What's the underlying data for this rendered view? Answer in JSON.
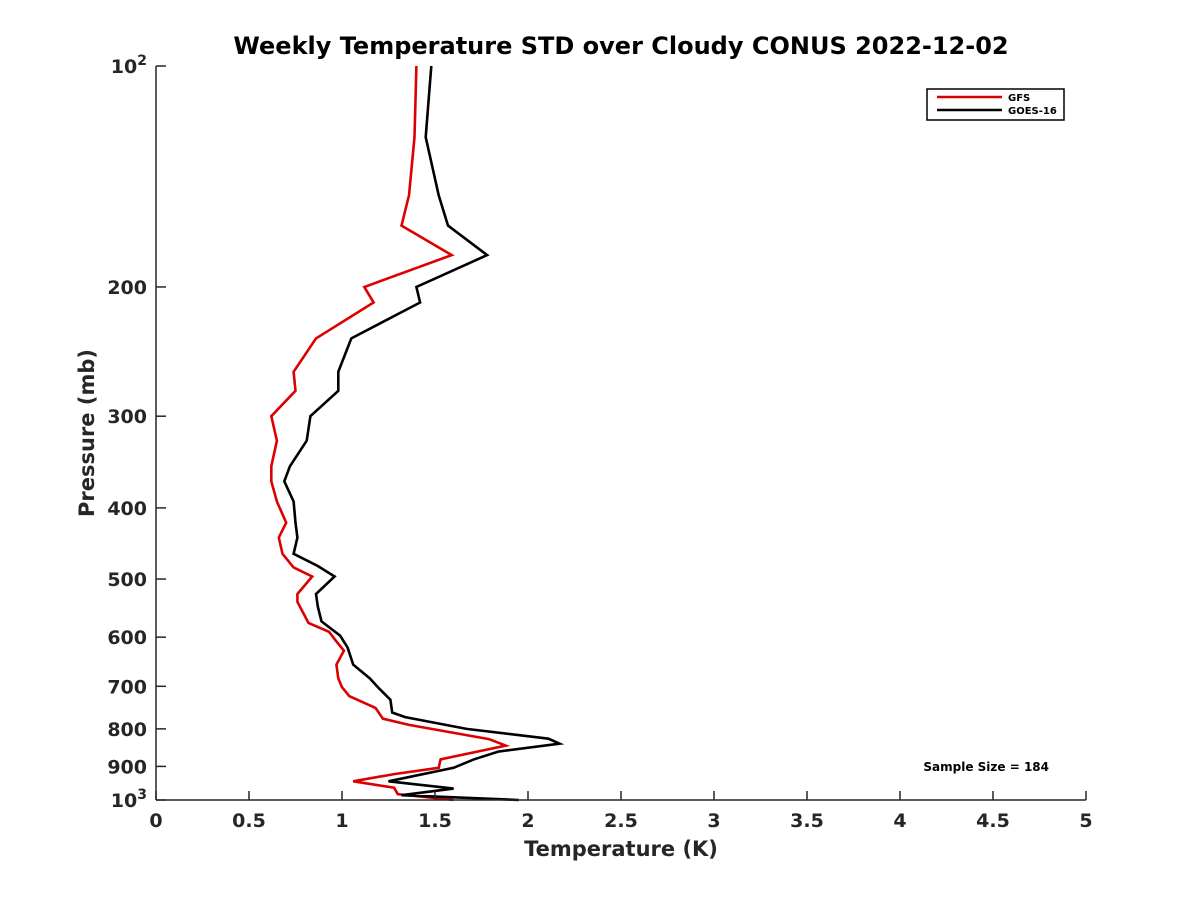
{
  "chart_data": {
    "type": "line",
    "title": "Weekly Temperature STD over Cloudy CONUS 2022-12-02",
    "xlabel": "Temperature (K)",
    "ylabel": "Pressure (mb)",
    "xlim": [
      0,
      5
    ],
    "ylim": [
      100,
      1000
    ],
    "y_scale": "log",
    "y_reversed": true,
    "x_ticks": [
      {
        "value": 0,
        "label": "0"
      },
      {
        "value": 0.5,
        "label": "0.5"
      },
      {
        "value": 1,
        "label": "1"
      },
      {
        "value": 1.5,
        "label": "1.5"
      },
      {
        "value": 2,
        "label": "2"
      },
      {
        "value": 2.5,
        "label": "2.5"
      },
      {
        "value": 3,
        "label": "3"
      },
      {
        "value": 3.5,
        "label": "3.5"
      },
      {
        "value": 4,
        "label": "4"
      },
      {
        "value": 4.5,
        "label": "4.5"
      },
      {
        "value": 5,
        "label": "5"
      }
    ],
    "y_ticks": [
      {
        "value": 100,
        "label": "10",
        "sup": "2"
      },
      {
        "value": 200,
        "label": "200"
      },
      {
        "value": 300,
        "label": "300"
      },
      {
        "value": 400,
        "label": "400"
      },
      {
        "value": 500,
        "label": "500"
      },
      {
        "value": 600,
        "label": "600"
      },
      {
        "value": 700,
        "label": "700"
      },
      {
        "value": 800,
        "label": "800"
      },
      {
        "value": 900,
        "label": "900"
      },
      {
        "value": 1000,
        "label": "10",
        "sup": "3"
      }
    ],
    "grid": false,
    "legend_position": "top-right",
    "annotation": "Sample Size = 184",
    "series": [
      {
        "name": "GFS",
        "color": "#dd0000",
        "points": [
          [
            1.4,
            100
          ],
          [
            1.39,
            125
          ],
          [
            1.36,
            150
          ],
          [
            1.32,
            165
          ],
          [
            1.59,
            181
          ],
          [
            1.12,
            200
          ],
          [
            1.17,
            210
          ],
          [
            0.86,
            235
          ],
          [
            0.74,
            261
          ],
          [
            0.75,
            277
          ],
          [
            0.62,
            300
          ],
          [
            0.65,
            324
          ],
          [
            0.62,
            351
          ],
          [
            0.62,
            368
          ],
          [
            0.65,
            392
          ],
          [
            0.7,
            419
          ],
          [
            0.66,
            439
          ],
          [
            0.68,
            462
          ],
          [
            0.74,
            482
          ],
          [
            0.84,
            496
          ],
          [
            0.76,
            524
          ],
          [
            0.76,
            537
          ],
          [
            0.82,
            574
          ],
          [
            0.93,
            590
          ],
          [
            0.97,
            608
          ],
          [
            1.01,
            626
          ],
          [
            0.97,
            654
          ],
          [
            0.98,
            683
          ],
          [
            1.0,
            702
          ],
          [
            1.04,
            722
          ],
          [
            1.18,
            749
          ],
          [
            1.22,
            775
          ],
          [
            1.36,
            790
          ],
          [
            1.79,
            826
          ],
          [
            1.88,
            843
          ],
          [
            1.53,
            880
          ],
          [
            1.52,
            904
          ],
          [
            1.28,
            922
          ],
          [
            1.06,
            943
          ],
          [
            1.28,
            962
          ],
          [
            1.3,
            982
          ],
          [
            1.6,
            1000
          ]
        ]
      },
      {
        "name": "GOES-16",
        "color": "#000000",
        "points": [
          [
            1.48,
            100
          ],
          [
            1.45,
            125
          ],
          [
            1.52,
            150
          ],
          [
            1.57,
            165
          ],
          [
            1.78,
            181
          ],
          [
            1.4,
            200
          ],
          [
            1.42,
            210
          ],
          [
            1.05,
            235
          ],
          [
            0.98,
            261
          ],
          [
            0.98,
            277
          ],
          [
            0.83,
            300
          ],
          [
            0.81,
            324
          ],
          [
            0.72,
            351
          ],
          [
            0.69,
            368
          ],
          [
            0.74,
            392
          ],
          [
            0.75,
            419
          ],
          [
            0.76,
            439
          ],
          [
            0.74,
            462
          ],
          [
            0.87,
            480
          ],
          [
            0.96,
            496
          ],
          [
            0.86,
            524
          ],
          [
            0.87,
            545
          ],
          [
            0.89,
            571
          ],
          [
            0.99,
            597
          ],
          [
            1.03,
            620
          ],
          [
            1.06,
            654
          ],
          [
            1.15,
            683
          ],
          [
            1.2,
            705
          ],
          [
            1.26,
            730
          ],
          [
            1.27,
            760
          ],
          [
            1.34,
            771
          ],
          [
            1.67,
            800
          ],
          [
            2.11,
            825
          ],
          [
            2.17,
            838
          ],
          [
            1.84,
            859
          ],
          [
            1.71,
            880
          ],
          [
            1.6,
            904
          ],
          [
            1.25,
            943
          ],
          [
            1.6,
            965
          ],
          [
            1.32,
            985
          ],
          [
            1.95,
            1000
          ]
        ]
      }
    ]
  }
}
